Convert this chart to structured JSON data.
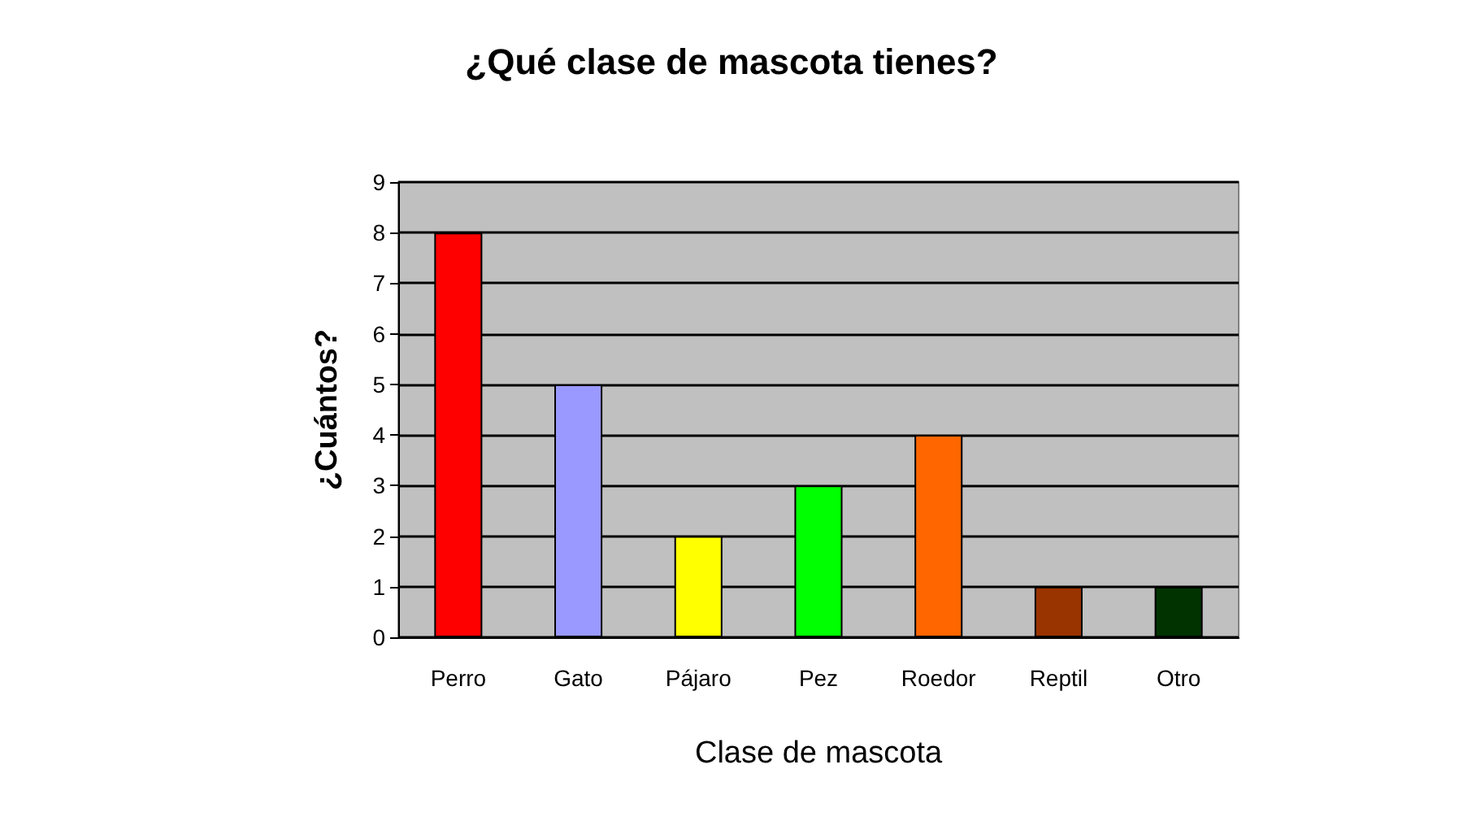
{
  "chart_data": {
    "type": "bar",
    "title": "¿Qué clase de mascota tienes?",
    "xlabel": "Clase de mascota",
    "ylabel": "¿Cuántos?",
    "categories": [
      "Perro",
      "Gato",
      "Pájaro",
      "Pez",
      "Roedor",
      "Reptil",
      "Otro"
    ],
    "values": [
      8,
      5,
      2,
      3,
      4,
      1,
      1
    ],
    "colors": [
      "#ff0000",
      "#9999ff",
      "#ffff00",
      "#00ff00",
      "#ff6600",
      "#993300",
      "#003300"
    ],
    "ylim": [
      0,
      9
    ],
    "yticks": [
      0,
      1,
      2,
      3,
      4,
      5,
      6,
      7,
      8,
      9
    ],
    "grid": "y"
  }
}
